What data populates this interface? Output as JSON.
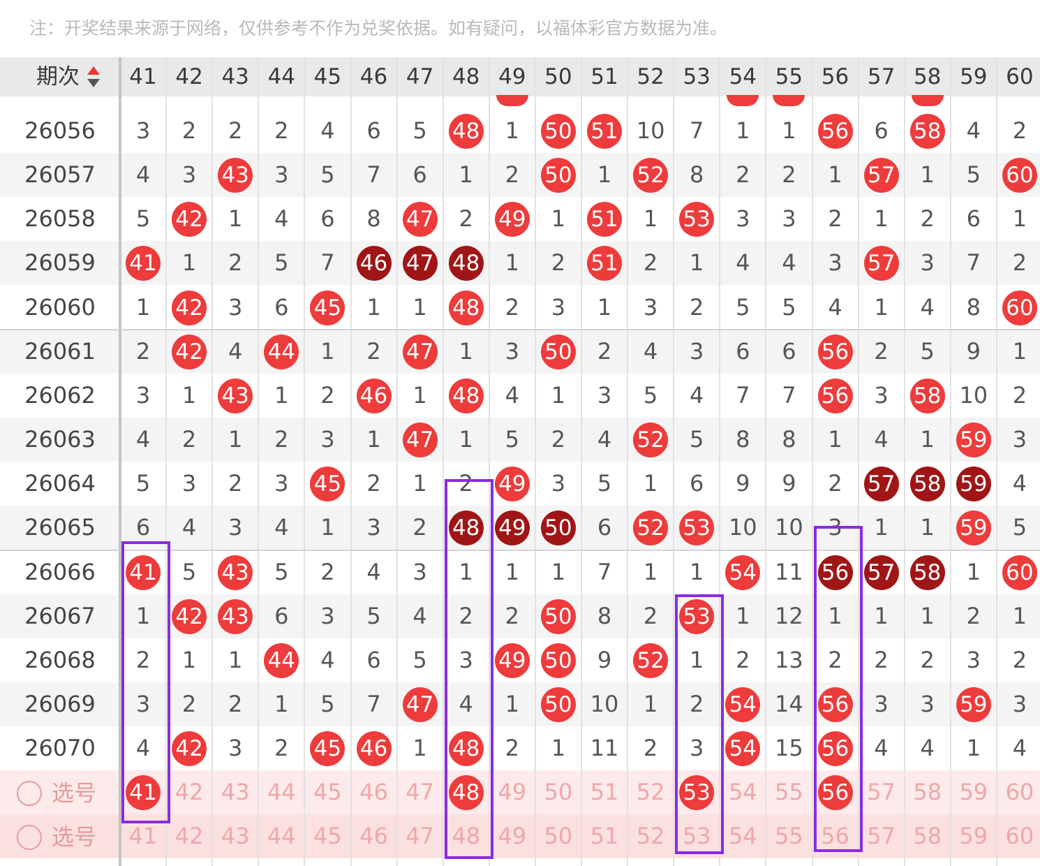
{
  "notice": "注：开奖结果来源于网络，仅供参考不作为兑奖依据。如有疑问，以福体彩官方数据为准。",
  "header": {
    "label": "期次",
    "columns": [
      "41",
      "42",
      "43",
      "44",
      "45",
      "46",
      "47",
      "48",
      "49",
      "50",
      "51",
      "52",
      "53",
      "54",
      "55",
      "56",
      "57",
      "58",
      "59",
      "60"
    ]
  },
  "colors": {
    "ball": "#ee3b3b",
    "ball_dark": "#a01515",
    "highlight": "#8a2be2"
  },
  "rows": [
    {
      "period": "26056",
      "cells": [
        "3",
        "2",
        "2",
        "2",
        "4",
        "6",
        "5",
        "48",
        "1",
        "50",
        "51",
        "10",
        "7",
        "1",
        "1",
        "56",
        "6",
        "58",
        "4",
        "2"
      ],
      "balls": [
        7,
        9,
        10,
        15,
        17
      ],
      "dark": []
    },
    {
      "period": "26057",
      "cells": [
        "4",
        "3",
        "43",
        "3",
        "5",
        "7",
        "6",
        "1",
        "2",
        "50",
        "1",
        "52",
        "8",
        "2",
        "2",
        "1",
        "57",
        "1",
        "5",
        "60"
      ],
      "balls": [
        2,
        9,
        11,
        16,
        19
      ],
      "dark": []
    },
    {
      "period": "26058",
      "cells": [
        "5",
        "42",
        "1",
        "4",
        "6",
        "8",
        "47",
        "2",
        "49",
        "1",
        "51",
        "1",
        "53",
        "3",
        "3",
        "2",
        "1",
        "2",
        "6",
        "1"
      ],
      "balls": [
        1,
        6,
        8,
        10,
        12
      ],
      "dark": []
    },
    {
      "period": "26059",
      "cells": [
        "41",
        "1",
        "2",
        "5",
        "7",
        "46",
        "47",
        "48",
        "1",
        "2",
        "51",
        "2",
        "1",
        "4",
        "4",
        "3",
        "57",
        "3",
        "7",
        "2"
      ],
      "balls": [
        0,
        5,
        6,
        7,
        10,
        16
      ],
      "dark": [
        5,
        6,
        7
      ]
    },
    {
      "period": "26060",
      "cells": [
        "1",
        "42",
        "3",
        "6",
        "45",
        "1",
        "1",
        "48",
        "2",
        "3",
        "1",
        "3",
        "2",
        "5",
        "5",
        "4",
        "1",
        "4",
        "8",
        "60"
      ],
      "balls": [
        1,
        4,
        7,
        19
      ],
      "dark": []
    },
    {
      "period": "26061",
      "cells": [
        "2",
        "42",
        "4",
        "44",
        "1",
        "2",
        "47",
        "1",
        "3",
        "50",
        "2",
        "4",
        "3",
        "6",
        "6",
        "56",
        "2",
        "5",
        "9",
        "1"
      ],
      "balls": [
        1,
        3,
        6,
        9,
        15
      ],
      "dark": []
    },
    {
      "period": "26062",
      "cells": [
        "3",
        "1",
        "43",
        "1",
        "2",
        "46",
        "1",
        "48",
        "4",
        "1",
        "3",
        "5",
        "4",
        "7",
        "7",
        "56",
        "3",
        "58",
        "10",
        "2"
      ],
      "balls": [
        2,
        5,
        7,
        15,
        17
      ],
      "dark": []
    },
    {
      "period": "26063",
      "cells": [
        "4",
        "2",
        "1",
        "2",
        "3",
        "1",
        "47",
        "1",
        "5",
        "2",
        "4",
        "52",
        "5",
        "8",
        "8",
        "1",
        "4",
        "1",
        "59",
        "3"
      ],
      "balls": [
        6,
        11,
        18
      ],
      "dark": []
    },
    {
      "period": "26064",
      "cells": [
        "5",
        "3",
        "2",
        "3",
        "45",
        "2",
        "1",
        "2",
        "49",
        "3",
        "5",
        "1",
        "6",
        "9",
        "9",
        "2",
        "57",
        "58",
        "59",
        "4"
      ],
      "balls": [
        4,
        8,
        16,
        17,
        18
      ],
      "dark": [
        16,
        17,
        18
      ]
    },
    {
      "period": "26065",
      "cells": [
        "6",
        "4",
        "3",
        "4",
        "1",
        "3",
        "2",
        "48",
        "49",
        "50",
        "6",
        "52",
        "53",
        "10",
        "10",
        "3",
        "1",
        "1",
        "59",
        "5"
      ],
      "balls": [
        7,
        8,
        9,
        11,
        12,
        18
      ],
      "dark": [
        7,
        8,
        9
      ]
    },
    {
      "period": "26066",
      "cells": [
        "41",
        "5",
        "43",
        "5",
        "2",
        "4",
        "3",
        "1",
        "1",
        "1",
        "7",
        "1",
        "1",
        "54",
        "11",
        "56",
        "57",
        "58",
        "1",
        "60"
      ],
      "balls": [
        0,
        2,
        13,
        15,
        16,
        17,
        19
      ],
      "dark": [
        15,
        16,
        17
      ]
    },
    {
      "period": "26067",
      "cells": [
        "1",
        "42",
        "43",
        "6",
        "3",
        "5",
        "4",
        "2",
        "2",
        "50",
        "8",
        "2",
        "53",
        "1",
        "12",
        "1",
        "1",
        "1",
        "2",
        "1"
      ],
      "balls": [
        1,
        2,
        9,
        12
      ],
      "dark": []
    },
    {
      "period": "26068",
      "cells": [
        "2",
        "1",
        "1",
        "44",
        "4",
        "6",
        "5",
        "3",
        "49",
        "50",
        "9",
        "52",
        "1",
        "2",
        "13",
        "2",
        "2",
        "2",
        "3",
        "2"
      ],
      "balls": [
        3,
        8,
        9,
        11
      ],
      "dark": []
    },
    {
      "period": "26069",
      "cells": [
        "3",
        "2",
        "2",
        "1",
        "5",
        "7",
        "47",
        "4",
        "1",
        "50",
        "10",
        "1",
        "2",
        "54",
        "14",
        "56",
        "3",
        "3",
        "59",
        "3"
      ],
      "balls": [
        6,
        9,
        13,
        15,
        18
      ],
      "dark": []
    },
    {
      "period": "26070",
      "cells": [
        "4",
        "42",
        "3",
        "2",
        "45",
        "46",
        "1",
        "48",
        "2",
        "1",
        "11",
        "2",
        "3",
        "54",
        "15",
        "56",
        "4",
        "4",
        "1",
        "4"
      ],
      "balls": [
        1,
        4,
        5,
        7,
        13,
        15
      ],
      "dark": []
    }
  ],
  "pick_rows": [
    {
      "label": "选号",
      "cells": [
        "41",
        "42",
        "43",
        "44",
        "45",
        "46",
        "47",
        "48",
        "49",
        "50",
        "51",
        "52",
        "53",
        "54",
        "55",
        "56",
        "57",
        "58",
        "59",
        "60"
      ],
      "balls": [
        0,
        7,
        12,
        15
      ]
    },
    {
      "label": "选号",
      "cells": [
        "41",
        "42",
        "43",
        "44",
        "45",
        "46",
        "47",
        "48",
        "49",
        "50",
        "51",
        "52",
        "53",
        "54",
        "55",
        "56",
        "57",
        "58",
        "59",
        "60"
      ],
      "balls": []
    }
  ]
}
